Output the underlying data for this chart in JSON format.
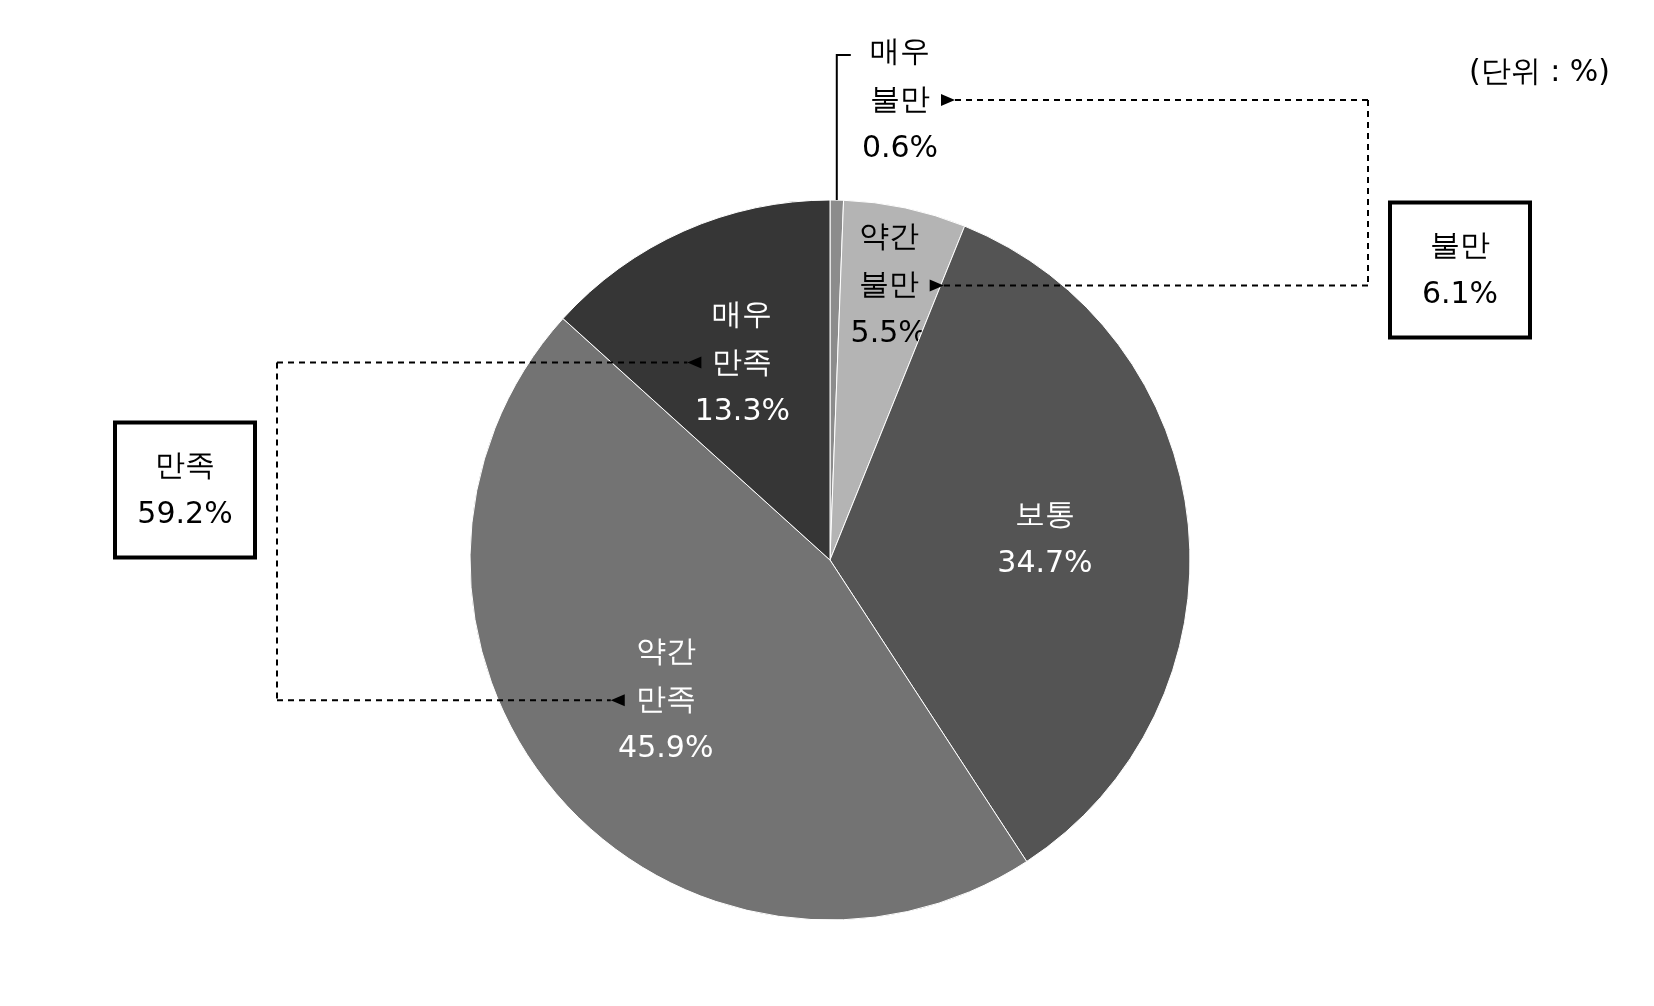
{
  "chart_data": {
    "type": "pie",
    "categories": [
      "매우 불만",
      "약간 불만",
      "보통",
      "약간 만족",
      "매우 만족"
    ],
    "values": [
      0.6,
      5.5,
      34.7,
      45.9,
      13.3
    ],
    "colors": [
      "#8c8c8c",
      "#b4b4b4",
      "#545454",
      "#737373",
      "#363636"
    ],
    "value_labels": [
      "0.6%",
      "5.5%",
      "34.7%",
      "45.9%",
      "13.3%"
    ],
    "annotations": [
      "(단위 : %)",
      "불만 6.1%",
      "만족 59.2%"
    ]
  }
}
